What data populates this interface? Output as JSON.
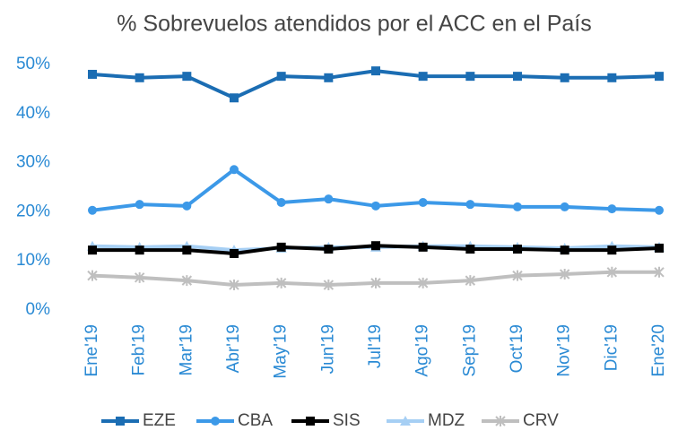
{
  "chart_data": {
    "type": "line",
    "title": "% Sobrevuelos atendidos por el ACC en el País",
    "categories": [
      "Ene'19",
      "Feb'19",
      "Mar'19",
      "Abr'19",
      "May'19",
      "Jun'19",
      "Jul'19",
      "Ago'19",
      "Sep'19",
      "Oct'19",
      "Nov'19",
      "Dic'19",
      "Ene'20"
    ],
    "series": [
      {
        "name": "EZE",
        "color": "#1b6db3",
        "marker": "square",
        "values": [
          48,
          47.3,
          47.6,
          43.2,
          47.6,
          47.3,
          48.7,
          47.6,
          47.6,
          47.6,
          47.3,
          47.3,
          47.6
        ]
      },
      {
        "name": "CBA",
        "color": "#3c99e8",
        "marker": "circle",
        "values": [
          20.3,
          21.5,
          21.2,
          28.6,
          21.9,
          22.6,
          21.2,
          21.9,
          21.5,
          21,
          21,
          20.6,
          20.3
        ]
      },
      {
        "name": "SIS",
        "color": "#000000",
        "marker": "square",
        "values": [
          12.2,
          12.2,
          12.2,
          11.5,
          12.8,
          12.4,
          13.1,
          12.8,
          12.4,
          12.4,
          12.2,
          12.2,
          12.6
        ]
      },
      {
        "name": "MDZ",
        "color": "#a6cff4",
        "marker": "triangle",
        "values": [
          13,
          12.8,
          13,
          12.2,
          12.6,
          12.8,
          12.8,
          13,
          13,
          12.8,
          12.6,
          13,
          12.8
        ]
      },
      {
        "name": "CRV",
        "color": "#bfbfbf",
        "marker": "star",
        "values": [
          7,
          6.6,
          6,
          5.1,
          5.5,
          5.1,
          5.5,
          5.5,
          6,
          7,
          7.3,
          7.7,
          7.7
        ]
      }
    ],
    "ylim": [
      0,
      50
    ],
    "yticks": [
      {
        "value": 0,
        "label": "0%"
      },
      {
        "value": 10,
        "label": "10%"
      },
      {
        "value": 20,
        "label": "20%"
      },
      {
        "value": 30,
        "label": "30%"
      },
      {
        "value": 40,
        "label": "40%"
      },
      {
        "value": 50,
        "label": "50%"
      }
    ],
    "legend": "bottom"
  }
}
